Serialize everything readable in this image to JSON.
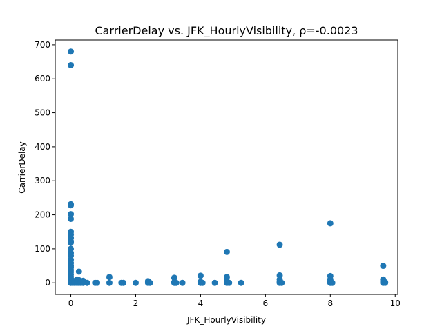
{
  "chart_data": {
    "type": "scatter",
    "title": "CarrierDelay vs. JFK_HourlyVisibility, ρ=-0.0023",
    "xlabel": "JFK_HourlyVisibility",
    "ylabel": "CarrierDelay",
    "xlim": [
      -0.48,
      10.08
    ],
    "ylim": [
      -34,
      714
    ],
    "xticks": [
      0,
      2,
      4,
      6,
      8,
      10
    ],
    "yticks": [
      0,
      100,
      200,
      300,
      400,
      500,
      600,
      700
    ],
    "grid": false,
    "marker_color": "#1f77b4",
    "series": [
      {
        "name": "CarrierDelay",
        "points": [
          [
            0,
            680
          ],
          [
            0,
            640
          ],
          [
            0,
            231
          ],
          [
            0,
            228
          ],
          [
            0,
            202
          ],
          [
            0,
            188
          ],
          [
            0,
            150
          ],
          [
            0,
            142
          ],
          [
            0,
            132
          ],
          [
            0,
            122
          ],
          [
            0,
            118
          ],
          [
            0,
            100
          ],
          [
            0,
            88
          ],
          [
            0,
            80
          ],
          [
            0,
            68
          ],
          [
            0,
            58
          ],
          [
            0,
            50
          ],
          [
            0,
            45
          ],
          [
            0,
            38
          ],
          [
            0,
            32
          ],
          [
            0,
            25
          ],
          [
            0,
            18
          ],
          [
            0,
            12
          ],
          [
            0,
            8
          ],
          [
            0,
            4
          ],
          [
            0,
            0
          ],
          [
            0.06,
            6
          ],
          [
            0.06,
            0
          ],
          [
            0.12,
            3
          ],
          [
            0.12,
            0
          ],
          [
            0.19,
            10
          ],
          [
            0.19,
            0
          ],
          [
            0.25,
            33
          ],
          [
            0.25,
            8
          ],
          [
            0.25,
            0
          ],
          [
            0.31,
            2
          ],
          [
            0.31,
            0
          ],
          [
            0.38,
            6
          ],
          [
            0.38,
            0
          ],
          [
            0.5,
            0
          ],
          [
            0.75,
            0
          ],
          [
            0.81,
            0
          ],
          [
            1.19,
            17
          ],
          [
            1.19,
            0
          ],
          [
            1.56,
            0
          ],
          [
            1.62,
            0
          ],
          [
            2.0,
            0
          ],
          [
            2.38,
            5
          ],
          [
            2.38,
            0
          ],
          [
            2.44,
            0
          ],
          [
            3.19,
            15
          ],
          [
            3.19,
            2
          ],
          [
            3.19,
            0
          ],
          [
            3.25,
            0
          ],
          [
            3.44,
            0
          ],
          [
            4.0,
            21
          ],
          [
            4.0,
            3
          ],
          [
            4.0,
            0
          ],
          [
            4.06,
            0
          ],
          [
            4.44,
            0
          ],
          [
            4.81,
            91
          ],
          [
            4.81,
            17
          ],
          [
            4.81,
            5
          ],
          [
            4.81,
            0
          ],
          [
            4.88,
            0
          ],
          [
            5.25,
            0
          ],
          [
            6.44,
            112
          ],
          [
            6.44,
            22
          ],
          [
            6.44,
            10
          ],
          [
            6.44,
            3
          ],
          [
            6.44,
            0
          ],
          [
            6.5,
            0
          ],
          [
            8.0,
            175
          ],
          [
            8.0,
            20
          ],
          [
            8.0,
            10
          ],
          [
            8.0,
            3
          ],
          [
            8.0,
            0
          ],
          [
            8.06,
            0
          ],
          [
            9.63,
            50
          ],
          [
            9.63,
            10
          ],
          [
            9.63,
            5
          ],
          [
            9.63,
            0
          ],
          [
            9.69,
            2
          ],
          [
            9.69,
            0
          ]
        ]
      }
    ]
  }
}
